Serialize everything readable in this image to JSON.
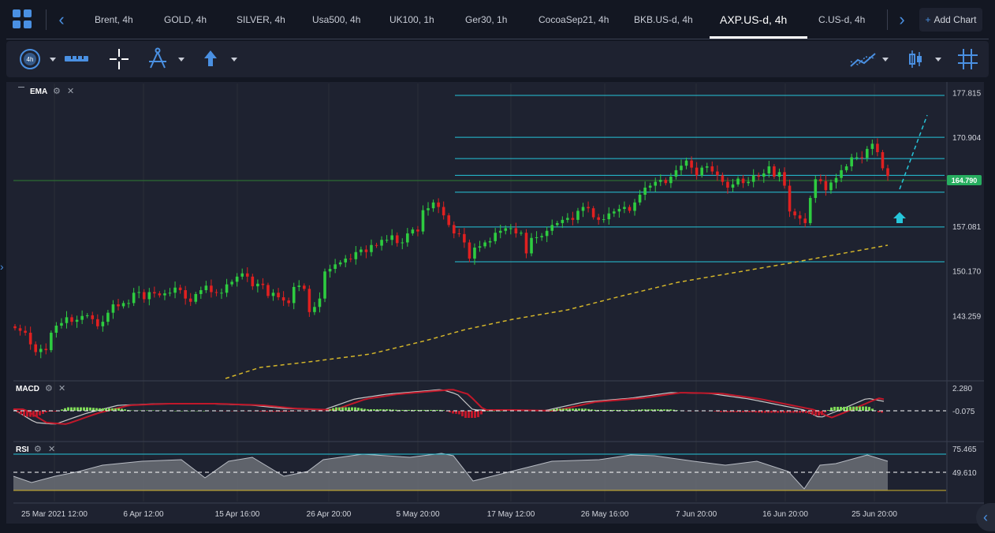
{
  "tabs": [
    {
      "label": "Brent, 4h",
      "active": false
    },
    {
      "label": "GOLD, 4h",
      "active": false
    },
    {
      "label": "SILVER, 4h",
      "active": false
    },
    {
      "label": "Usa500, 4h",
      "active": false
    },
    {
      "label": "UK100, 1h",
      "active": false
    },
    {
      "label": "Ger30, 1h",
      "active": false
    },
    {
      "label": "CocoaSep21, 4h",
      "active": false
    },
    {
      "label": "BKB.US-d, 4h",
      "active": false
    },
    {
      "label": "AXP.US-d, 4h",
      "active": true
    },
    {
      "label": "C.US-d, 4h",
      "active": false
    }
  ],
  "add_chart_label": "Add Chart",
  "icons": {
    "layout": "grid-icon",
    "prev": "chevron-left-icon",
    "next": "chevron-right-icon",
    "timeframe": "timeframe-icon",
    "ruler": "ruler-icon",
    "crosshair": "crosshair-icon",
    "drawing": "compass-icon",
    "arrow": "arrow-up-icon",
    "indicators": "indicators-icon",
    "chart_type": "candlestick-icon",
    "grid": "gridlines-icon"
  },
  "timeframe_label": "4h",
  "colors": {
    "accent": "#4a90e2",
    "bull": "#2ecc40",
    "bear": "#e02020",
    "level": "#26c6da",
    "ema": "#d4b62a",
    "price_tag": "#27ae60"
  },
  "indicators": {
    "ema": {
      "label": "EMA"
    },
    "macd": {
      "label": "MACD",
      "ticks": [
        "2.280",
        "-0.075"
      ]
    },
    "rsi": {
      "label": "RSI",
      "ticks": [
        "75.465",
        "49.610"
      ]
    }
  },
  "chart_data": {
    "type": "candlestick",
    "symbol": "AXP.US-d, 4h",
    "current_price": "164.790",
    "price_ticks": [
      "177.815",
      "170.904",
      "157.081",
      "150.170",
      "143.259"
    ],
    "hidden_tick": "163.992",
    "ylim": [
      136.5,
      178.5
    ],
    "levels": [
      177.4,
      170.9,
      167.6,
      165.0,
      162.4,
      157.0,
      151.6
    ],
    "time_ticks": [
      "25 Mar 2021 12:00",
      "6 Apr 12:00",
      "15 Apr 16:00",
      "26 Apr 20:00",
      "5 May 20:00",
      "17 May 12:00",
      "26 May 16:00",
      "7 Jun 20:00",
      "16 Jun 20:00",
      "25 Jun 20:00"
    ],
    "closes": [
      141.3,
      140.9,
      140.6,
      138.8,
      137.6,
      138.1,
      137.9,
      140.6,
      141.7,
      142.1,
      143.0,
      142.3,
      142.6,
      143.2,
      143.3,
      142.7,
      141.6,
      142.3,
      143.7,
      145.0,
      144.7,
      145.2,
      145.2,
      146.8,
      146.9,
      145.8,
      146.9,
      146.7,
      146.4,
      146.7,
      146.8,
      147.6,
      147.2,
      145.9,
      145.4,
      146.6,
      147.2,
      147.9,
      146.9,
      146.8,
      146.8,
      148.1,
      148.5,
      149.3,
      149.8,
      149.3,
      147.8,
      148.2,
      148.0,
      146.3,
      146.8,
      146.1,
      145.6,
      145.2,
      147.7,
      147.9,
      147.4,
      143.8,
      144.6,
      145.9,
      150.1,
      150.5,
      151.2,
      151.5,
      152.1,
      152.0,
      153.1,
      153.5,
      153.1,
      154.2,
      154.1,
      155.0,
      155.0,
      155.7,
      154.5,
      154.6,
      156.0,
      156.6,
      156.3,
      159.6,
      159.9,
      160.8,
      160.1,
      158.8,
      157.3,
      156.0,
      155.9,
      154.6,
      152.1,
      153.8,
      154.0,
      154.6,
      154.8,
      156.1,
      156.4,
      156.8,
      156.8,
      156.0,
      156.1,
      152.9,
      155.3,
      155.4,
      155.6,
      156.4,
      157.3,
      157.6,
      158.1,
      158.4,
      158.1,
      159.5,
      160.1,
      159.9,
      158.5,
      158.1,
      158.2,
      159.1,
      159.4,
      159.8,
      160.1,
      159.5,
      160.8,
      162.0,
      163.1,
      163.4,
      164.0,
      164.3,
      163.8,
      164.8,
      165.8,
      166.5,
      167.3,
      166.2,
      165.0,
      166.2,
      166.4,
      165.6,
      165.0,
      164.0,
      163.1,
      163.6,
      164.5,
      163.8,
      164.0,
      165.0,
      164.8,
      165.3,
      166.4,
      164.8,
      165.5,
      163.4,
      159.4,
      158.8,
      158.3,
      157.6,
      161.5,
      164.4,
      164.1,
      162.7,
      163.9,
      164.6,
      165.8,
      166.4,
      167.8,
      167.8,
      167.7,
      169.1,
      169.9,
      168.6,
      166.1,
      164.9
    ]
  }
}
